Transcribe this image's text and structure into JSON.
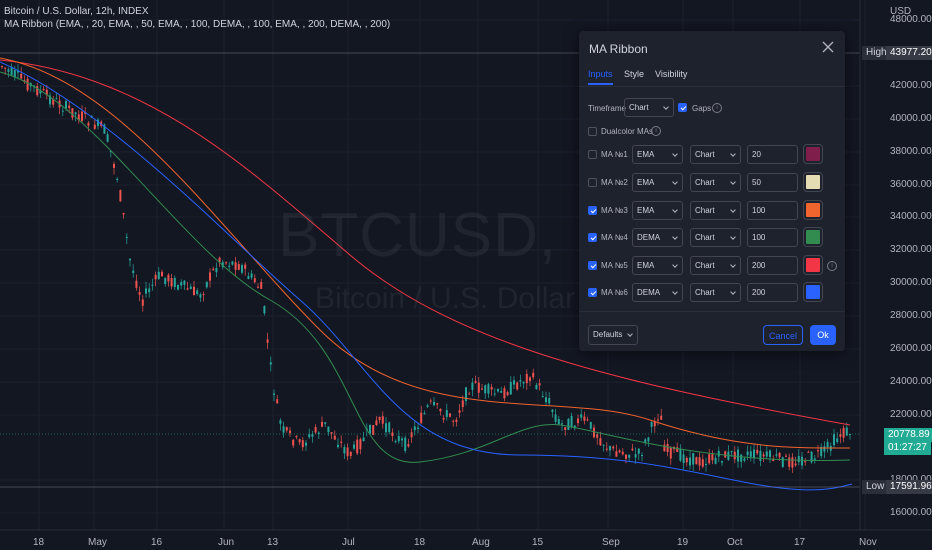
{
  "header": {
    "symbol_line": "Bitcoin / U.S. Dollar, 12h, INDEX",
    "indicator_line": "MA Ribbon (EMA, , 20, EMA, , 50, EMA, , 100, DEMA, , 100, EMA, , 200, DEMA, , 200)"
  },
  "watermark": {
    "ticker": "BTCUSD, 12",
    "name": "Bitcoin / U.S. Dollar"
  },
  "price_axis": {
    "currency": "USD",
    "labels": [
      "48000.00",
      "42000.00",
      "40000.00",
      "38000.00",
      "36000.00",
      "34000.00",
      "32000.00",
      "30000.00",
      "28000.00",
      "26000.00",
      "24000.00",
      "22000.00",
      "18000.00",
      "16000.00"
    ],
    "high_label": "High",
    "high_value": "43977.20",
    "low_label": "Low",
    "low_value": "17591.96",
    "last_price": "20778.89",
    "countdown": "01:27:27"
  },
  "time_axis": [
    "18",
    "May",
    "16",
    "Jun",
    "13",
    "Jul",
    "18",
    "Aug",
    "15",
    "Sep",
    "19",
    "Oct",
    "17",
    "Nov"
  ],
  "dialog": {
    "title": "MA Ribbon",
    "tabs": [
      {
        "label": "Inputs",
        "active": true
      },
      {
        "label": "Style",
        "active": false
      },
      {
        "label": "Visibility",
        "active": false
      }
    ],
    "timeframe_label": "Timeframe",
    "timeframe_value": "Chart",
    "gaps_label": "Gaps",
    "gaps_checked": true,
    "dualcolor_label": "Dualcolor MAs",
    "dualcolor_checked": false,
    "mas": [
      {
        "label": "MA №1",
        "checked": false,
        "type": "EMA",
        "source": "Chart",
        "length": "20",
        "color": "#801e4b"
      },
      {
        "label": "MA №2",
        "checked": false,
        "type": "EMA",
        "source": "Chart",
        "length": "50",
        "color": "#e6dcb4"
      },
      {
        "label": "MA №3",
        "checked": true,
        "type": "EMA",
        "source": "Chart",
        "length": "100",
        "color": "#f0642d"
      },
      {
        "label": "MA №4",
        "checked": true,
        "type": "DEMA",
        "source": "Chart",
        "length": "100",
        "color": "#328c50"
      },
      {
        "label": "MA №5",
        "checked": true,
        "type": "EMA",
        "source": "Chart",
        "length": "200",
        "color": "#f23645"
      },
      {
        "label": "MA №6",
        "checked": true,
        "type": "DEMA",
        "source": "Chart",
        "length": "200",
        "color": "#2962ff"
      }
    ],
    "defaults_label": "Defaults",
    "cancel_label": "Cancel",
    "ok_label": "Ok"
  },
  "colors": {
    "background": "#131722",
    "dialog": "#1e222d",
    "accent": "#2962ff",
    "up": "#26a69a",
    "down": "#ef5350",
    "last_price_bg": "#22ab94"
  }
}
